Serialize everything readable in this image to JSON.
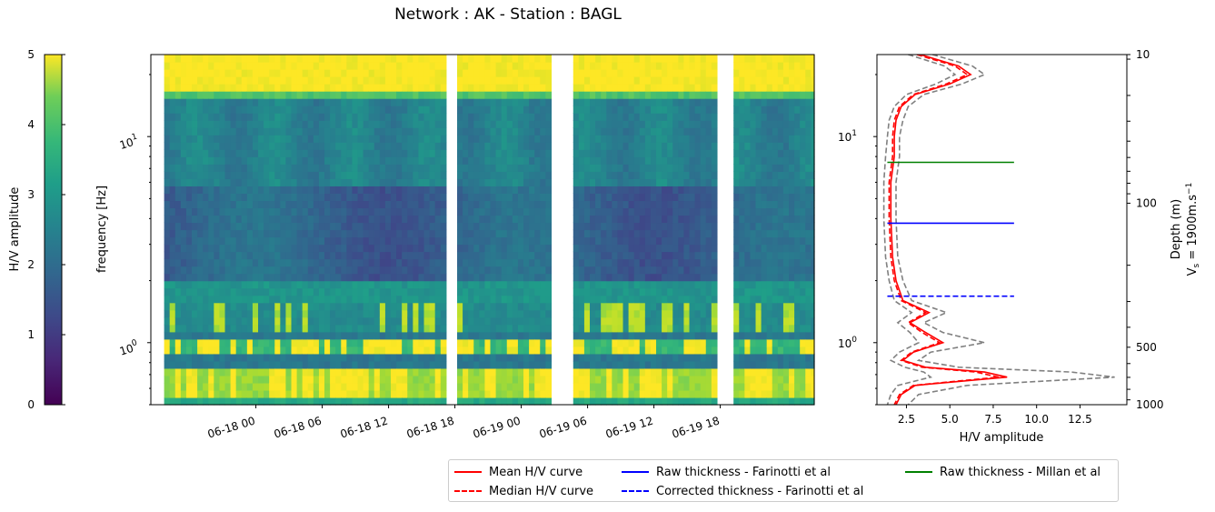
{
  "title": "Network : AK - Station : BAGL",
  "colorbar": {
    "label": "H/V amplitude",
    "ticks": [
      "0",
      "1",
      "2",
      "3",
      "4",
      "5"
    ],
    "range": [
      0,
      5
    ],
    "colormap": "viridis"
  },
  "chart_data": [
    {
      "type": "heatmap",
      "xlabel": "",
      "ylabel": "frequency [Hz]",
      "yscale": "log",
      "ylim": [
        0.5,
        25
      ],
      "xticks": [
        "06-18 00",
        "06-18 06",
        "06-18 12",
        "06-18 18",
        "06-19 00",
        "06-19 06",
        "06-19 12",
        "06-19 18"
      ],
      "yticks": [
        "10^0",
        "10^1"
      ],
      "gaps_hours_since_06-17": [
        [
          "06-18 17:00",
          "06-18 18:00"
        ],
        [
          "06-19 02:30",
          "06-19 04:30"
        ],
        [
          "06-19 17:00",
          "06-19 18:00"
        ]
      ],
      "description_bands": [
        {
          "freq_range_hz": [
            17,
            25
          ],
          "hv_amplitude": 5
        },
        {
          "freq_range_hz": [
            3,
            6
          ],
          "hv_amplitude": 1.6
        },
        {
          "freq_range_hz": [
            0.55,
            0.75
          ],
          "hv_amplitude": 4.6
        },
        {
          "freq_range_hz": [
            0.85,
            1.0
          ],
          "hv_amplitude": 4.2
        }
      ]
    },
    {
      "type": "line",
      "xlabel": "H/V amplitude",
      "xticks": [
        "2.5",
        "5.0",
        "7.5",
        "10.0",
        "12.5"
      ],
      "xlim": [
        0.8,
        15.2
      ],
      "yscale": "log",
      "ylim": [
        0.5,
        25
      ],
      "yticks": [
        "10^0",
        "10^1"
      ],
      "right_axis": {
        "label_line1": "Depth (m)",
        "label_line2": "V_s = 1900m.s^-1",
        "ticks": [
          "10",
          "100",
          "500",
          "1000"
        ]
      },
      "series": [
        {
          "name": "Mean H/V curve",
          "style": "solid",
          "color": "#ff0000",
          "points": [
            [
              3.3,
              25
            ],
            [
              5.5,
              22
            ],
            [
              6.2,
              20
            ],
            [
              5.0,
              18
            ],
            [
              3.0,
              16
            ],
            [
              2.2,
              14
            ],
            [
              1.9,
              12
            ],
            [
              1.8,
              10
            ],
            [
              1.8,
              8
            ],
            [
              1.6,
              6
            ],
            [
              1.6,
              4
            ],
            [
              1.7,
              2.6
            ],
            [
              1.9,
              2.0
            ],
            [
              2.3,
              1.6
            ],
            [
              3.8,
              1.4
            ],
            [
              2.7,
              1.25
            ],
            [
              3.6,
              1.12
            ],
            [
              4.6,
              1.0
            ],
            [
              2.9,
              0.9
            ],
            [
              2.3,
              0.82
            ],
            [
              3.6,
              0.76
            ],
            [
              7.0,
              0.72
            ],
            [
              8.3,
              0.68
            ],
            [
              3.0,
              0.62
            ],
            [
              2.2,
              0.56
            ],
            [
              1.9,
              0.5
            ]
          ]
        },
        {
          "name": "Median H/V curve",
          "style": "dashed",
          "color": "#ff0000",
          "points": [
            [
              3.1,
              25
            ],
            [
              5.3,
              22
            ],
            [
              6.0,
              20
            ],
            [
              4.8,
              18
            ],
            [
              2.9,
              16
            ],
            [
              2.1,
              14
            ],
            [
              1.8,
              12
            ],
            [
              1.7,
              10
            ],
            [
              1.7,
              8
            ],
            [
              1.5,
              6
            ],
            [
              1.5,
              4
            ],
            [
              1.6,
              2.6
            ],
            [
              1.8,
              2.0
            ],
            [
              2.2,
              1.6
            ],
            [
              3.6,
              1.4
            ],
            [
              2.6,
              1.25
            ],
            [
              3.4,
              1.12
            ],
            [
              4.4,
              1.0
            ],
            [
              2.8,
              0.9
            ],
            [
              2.2,
              0.82
            ],
            [
              3.4,
              0.76
            ],
            [
              6.5,
              0.72
            ],
            [
              7.8,
              0.68
            ],
            [
              2.9,
              0.62
            ],
            [
              2.1,
              0.56
            ],
            [
              1.8,
              0.5
            ]
          ]
        },
        {
          "name": "",
          "style": "dashed",
          "color": "#808080",
          "points": [
            [
              4.0,
              25
            ],
            [
              6.3,
              22
            ],
            [
              7.0,
              20
            ],
            [
              5.7,
              18
            ],
            [
              3.5,
              16
            ],
            [
              2.6,
              14
            ],
            [
              2.3,
              12
            ],
            [
              2.1,
              10
            ],
            [
              2.1,
              8
            ],
            [
              1.9,
              6
            ],
            [
              1.9,
              4
            ],
            [
              2.0,
              2.6
            ],
            [
              2.3,
              2.0
            ],
            [
              2.8,
              1.6
            ],
            [
              4.8,
              1.4
            ],
            [
              3.5,
              1.25
            ],
            [
              4.6,
              1.12
            ],
            [
              7.0,
              1.0
            ],
            [
              3.9,
              0.9
            ],
            [
              3.2,
              0.82
            ],
            [
              5.5,
              0.76
            ],
            [
              12.0,
              0.72
            ],
            [
              14.5,
              0.68
            ],
            [
              6.0,
              0.62
            ],
            [
              3.2,
              0.56
            ],
            [
              2.6,
              0.5
            ]
          ]
        },
        {
          "name": "",
          "style": "dashed",
          "color": "#808080",
          "points": [
            [
              2.6,
              25
            ],
            [
              4.7,
              22
            ],
            [
              5.3,
              20
            ],
            [
              4.2,
              18
            ],
            [
              2.5,
              16
            ],
            [
              1.8,
              14
            ],
            [
              1.5,
              12
            ],
            [
              1.4,
              10
            ],
            [
              1.3,
              8
            ],
            [
              1.2,
              6
            ],
            [
              1.2,
              4
            ],
            [
              1.3,
              2.6
            ],
            [
              1.5,
              2.0
            ],
            [
              1.8,
              1.6
            ],
            [
              2.8,
              1.4
            ],
            [
              2.0,
              1.25
            ],
            [
              2.7,
              1.12
            ],
            [
              3.2,
              1.0
            ],
            [
              2.1,
              0.9
            ],
            [
              1.6,
              0.82
            ],
            [
              2.4,
              0.76
            ],
            [
              3.5,
              0.72
            ],
            [
              3.9,
              0.68
            ],
            [
              2.0,
              0.62
            ],
            [
              1.6,
              0.56
            ],
            [
              1.4,
              0.5
            ]
          ]
        }
      ],
      "hlines": [
        {
          "name": "Raw thickness - Millan et al",
          "color": "#008000",
          "style": "solid",
          "y": 7.5,
          "xrange": [
            1.4,
            8.7
          ]
        },
        {
          "name": "Raw thickness - Farinotti et al",
          "color": "#0000ff",
          "style": "solid",
          "y": 3.8,
          "xrange": [
            1.4,
            8.7
          ]
        },
        {
          "name": "Corrected thickness - Farinotti et al",
          "color": "#0000ff",
          "style": "dashed",
          "y": 1.68,
          "xrange": [
            1.4,
            8.7
          ]
        }
      ]
    }
  ],
  "legend": [
    {
      "label": "Mean H/V curve",
      "color": "#ff0000",
      "style": "solid"
    },
    {
      "label": "Median H/V curve",
      "color": "#ff0000",
      "style": "dashed"
    },
    {
      "label": "Raw thickness - Farinotti et al",
      "color": "#0000ff",
      "style": "solid"
    },
    {
      "label": "Corrected thickness - Farinotti et al",
      "color": "#0000ff",
      "style": "dashed"
    },
    {
      "label": "Raw thickness - Millan et al",
      "color": "#008000",
      "style": "solid"
    }
  ]
}
